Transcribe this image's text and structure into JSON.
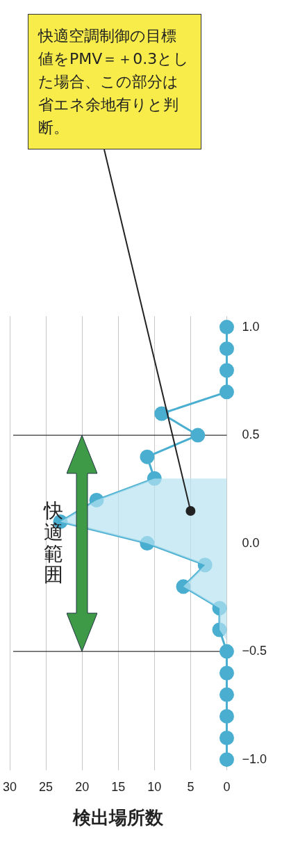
{
  "chart_data": {
    "type": "line",
    "xlabel": "検出場所数",
    "series": [
      {
        "type": "area",
        "marker": "none",
        "color": "#b5e2f1",
        "x": [
          0,
          1,
          1,
          6,
          3,
          11,
          23,
          18,
          10,
          0
        ],
        "values": [
          -0.45,
          -0.4,
          -0.3,
          -0.2,
          -0.1,
          0.0,
          0.1,
          0.2,
          0.3,
          0.3
        ]
      },
      {
        "type": "line",
        "color": "#4aaed0",
        "x": [
          0,
          0,
          0,
          0,
          0,
          0,
          1,
          1,
          6,
          3,
          11,
          23,
          18,
          10,
          11,
          4,
          9,
          0,
          0,
          0,
          0
        ],
        "values": [
          -1.0,
          -0.9,
          -0.8,
          -0.7,
          -0.6,
          -0.5,
          -0.4,
          -0.3,
          -0.2,
          -0.1,
          0.0,
          0.1,
          0.2,
          0.3,
          0.4,
          0.5,
          0.6,
          0.7,
          0.8,
          0.9,
          1.0
        ]
      }
    ],
    "xlim": [
      30,
      0
    ],
    "xticks": [
      0,
      5,
      10,
      15,
      20,
      25,
      30
    ],
    "ylim": [
      -1.05,
      1.05
    ],
    "yticks": [
      {
        "value": -1.0,
        "label": "−1.0"
      },
      {
        "value": -0.5,
        "label": "−0.5"
      },
      {
        "value": 0.0,
        "label": "0.0"
      },
      {
        "value": 0.5,
        "label": "0.5"
      },
      {
        "value": 1.0,
        "label": "1.0"
      }
    ],
    "grid": "x",
    "marker": "circle",
    "line_style": "solid",
    "ref_lines": [
      {
        "axis": "y",
        "value": -0.5,
        "color": "#333333"
      },
      {
        "axis": "y",
        "value": 0.5,
        "color": "#333333"
      }
    ],
    "annotations": [
      "快適範囲",
      {
        "text": "快適空調制御の目標値をPMV＝＋0.3とした場合、この部分は省エネ余地有りと判断。",
        "x": 5,
        "y": 0.15
      }
    ]
  }
}
